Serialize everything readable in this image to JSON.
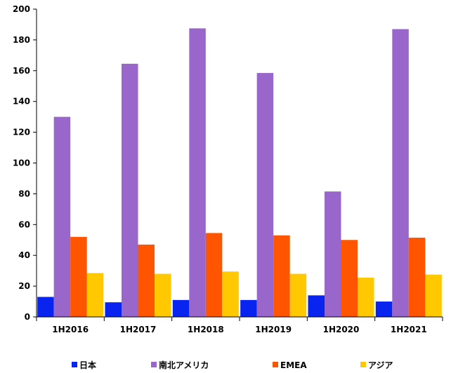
{
  "chart_data": {
    "type": "bar",
    "categories": [
      "1H2016",
      "1H2017",
      "1H2018",
      "1H2019",
      "1H2020",
      "1H2021"
    ],
    "series": [
      {
        "name": "日本",
        "color": "#0a24f0",
        "values": [
          13,
          9.5,
          11,
          11,
          14,
          10
        ]
      },
      {
        "name": "南北アメリカ",
        "color": "#9966cc",
        "values": [
          130,
          164.5,
          187.5,
          158.5,
          81.5,
          187
        ]
      },
      {
        "name": "EMEA",
        "color": "#ff5500",
        "values": [
          52,
          47,
          54.5,
          53,
          50,
          51.5
        ]
      },
      {
        "name": "アジア",
        "color": "#ffc800",
        "values": [
          28.5,
          28,
          29.5,
          28,
          25.5,
          27.5
        ]
      }
    ],
    "ylim": [
      0,
      200
    ],
    "yticks": [
      0,
      20,
      40,
      60,
      80,
      100,
      120,
      140,
      160,
      180,
      200
    ],
    "legend_position": "bottom",
    "grid": false
  }
}
